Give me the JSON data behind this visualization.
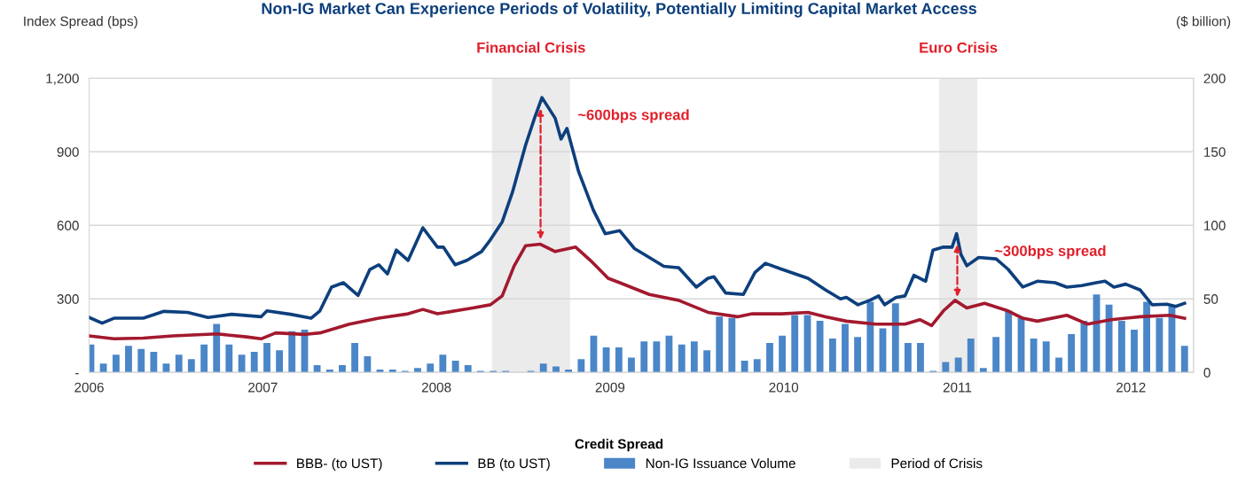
{
  "chart_data": {
    "type": "line",
    "title": "Non-IG Market Can Experience Periods of Volatility, Potentially Limiting Capital Market Access",
    "ylabel": "Index Spread (bps)",
    "y2label": "($ billion)",
    "legend_title": "Credit Spread",
    "xlim": [
      2006,
      2012.36
    ],
    "xticks": [
      2006,
      2007,
      2008,
      2009,
      2010,
      2011,
      2012
    ],
    "ylim": [
      0,
      1200
    ],
    "yticks": [
      {
        "value": 0,
        "label": "-"
      },
      300,
      600,
      900,
      {
        "value": 1200,
        "label": "1,200"
      }
    ],
    "y2lim": [
      0,
      200
    ],
    "y2ticks": [
      0,
      50,
      100,
      150,
      200
    ],
    "grid": "y",
    "legend": "bottom",
    "series": [
      {
        "name": "BBB- (to UST)",
        "color": "#a3192e",
        "x": [
          2006.0,
          2006.143,
          2006.312,
          2006.482,
          2006.736,
          2006.906,
          2006.99,
          2007.075,
          2007.245,
          2007.329,
          2007.499,
          2007.668,
          2007.837,
          2007.922,
          2008.006,
          2008.209,
          2008.311,
          2008.379,
          2008.447,
          2008.514,
          2008.599,
          2008.684,
          2008.802,
          2008.887,
          2008.989,
          2009.056,
          2009.226,
          2009.395,
          2009.564,
          2009.734,
          2009.819,
          2009.988,
          2010.14,
          2010.242,
          2010.361,
          2010.53,
          2010.699,
          2010.784,
          2010.852,
          2010.92,
          2010.987,
          2011.055,
          2011.157,
          2011.292,
          2011.377,
          2011.461,
          2011.631,
          2011.749,
          2011.885,
          2012.054,
          2012.224,
          2012.309
        ],
        "values": [
          149,
          137,
          140,
          149,
          157,
          145,
          137,
          161,
          155,
          161,
          197,
          221,
          239,
          257,
          239,
          263,
          276,
          312,
          433,
          517,
          523,
          493,
          511,
          457,
          384,
          366,
          318,
          294,
          245,
          227,
          239,
          239,
          245,
          227,
          209,
          197,
          197,
          215,
          191,
          251,
          294,
          263,
          282,
          251,
          221,
          209,
          233,
          197,
          215,
          227,
          233,
          221
        ]
      },
      {
        "name": "BB (to UST)",
        "color": "#0d3f7d",
        "x": [
          2006.0,
          2006.075,
          2006.143,
          2006.312,
          2006.431,
          2006.567,
          2006.685,
          2006.821,
          2006.99,
          2007.024,
          2007.16,
          2007.278,
          2007.329,
          2007.396,
          2007.464,
          2007.549,
          2007.617,
          2007.668,
          2007.718,
          2007.769,
          2007.837,
          2007.922,
          2008.006,
          2008.04,
          2008.108,
          2008.176,
          2008.26,
          2008.311,
          2008.379,
          2008.438,
          2008.514,
          2008.565,
          2008.608,
          2008.684,
          2008.718,
          2008.752,
          2008.819,
          2008.904,
          2008.972,
          2009.056,
          2009.141,
          2009.226,
          2009.31,
          2009.395,
          2009.497,
          2009.564,
          2009.599,
          2009.666,
          2009.768,
          2009.835,
          2009.895,
          2009.988,
          2010.14,
          2010.242,
          2010.327,
          2010.361,
          2010.428,
          2010.496,
          2010.547,
          2010.581,
          2010.648,
          2010.699,
          2010.75,
          2010.818,
          2010.86,
          2010.92,
          2010.97,
          2010.996,
          2011.021,
          2011.055,
          2011.123,
          2011.224,
          2011.292,
          2011.377,
          2011.461,
          2011.563,
          2011.631,
          2011.716,
          2011.8,
          2011.851,
          2011.902,
          2011.97,
          2012.054,
          2012.122,
          2012.207,
          2012.258,
          2012.309
        ],
        "values": [
          224,
          201,
          221,
          221,
          249,
          245,
          224,
          237,
          227,
          251,
          237,
          221,
          251,
          348,
          366,
          314,
          420,
          439,
          402,
          499,
          457,
          590,
          511,
          511,
          439,
          457,
          493,
          541,
          614,
          735,
          928,
          1037,
          1121,
          1037,
          952,
          995,
          819,
          662,
          566,
          578,
          505,
          469,
          433,
          427,
          348,
          384,
          390,
          324,
          318,
          408,
          445,
          421,
          384,
          336,
          300,
          306,
          276,
          294,
          312,
          276,
          306,
          312,
          396,
          372,
          499,
          511,
          511,
          566,
          481,
          435,
          469,
          463,
          421,
          348,
          372,
          366,
          348,
          354,
          366,
          372,
          348,
          360,
          336,
          276,
          278,
          269,
          282
        ]
      },
      {
        "name": "Non-IG Issuance Volume",
        "type": "bar",
        "axis": "y2",
        "color": "#4a86c8",
        "x": [
          2006.01,
          2006.082,
          2006.155,
          2006.227,
          2006.3,
          2006.372,
          2006.444,
          2006.517,
          2006.589,
          2006.662,
          2006.734,
          2006.806,
          2006.879,
          2006.951,
          2007.024,
          2007.096,
          2007.168,
          2007.241,
          2007.313,
          2007.386,
          2007.458,
          2007.53,
          2007.603,
          2007.675,
          2007.748,
          2007.82,
          2007.892,
          2007.965,
          2008.037,
          2008.11,
          2008.182,
          2008.254,
          2008.327,
          2008.399,
          2008.472,
          2008.544,
          2008.616,
          2008.689,
          2008.761,
          2008.834,
          2008.906,
          2008.978,
          2009.051,
          2009.123,
          2009.196,
          2009.268,
          2009.34,
          2009.413,
          2009.485,
          2009.558,
          2009.63,
          2009.702,
          2009.775,
          2009.847,
          2009.92,
          2009.992,
          2010.064,
          2010.137,
          2010.209,
          2010.282,
          2010.354,
          2010.426,
          2010.499,
          2010.571,
          2010.644,
          2010.716,
          2010.788,
          2010.861,
          2010.933,
          2011.006,
          2011.078,
          2011.15,
          2011.223,
          2011.295,
          2011.368,
          2011.44,
          2011.512,
          2011.585,
          2011.657,
          2011.73,
          2011.802,
          2011.874,
          2011.947,
          2012.019,
          2012.091,
          2012.164,
          2012.236,
          2012.309
        ],
        "values": [
          19,
          6,
          12,
          18,
          16,
          14,
          6,
          12,
          9,
          19,
          33,
          19,
          12,
          14,
          20,
          15,
          28,
          29,
          5,
          2,
          5,
          20,
          11,
          2,
          2,
          1,
          3,
          6,
          12,
          8,
          5,
          1,
          1,
          1,
          0,
          1,
          6,
          4,
          2,
          9,
          25,
          17,
          17,
          10,
          21,
          21,
          25,
          19,
          21,
          15,
          38,
          37,
          8,
          9,
          20,
          25,
          39,
          39,
          35,
          23,
          33,
          24,
          48,
          30,
          47,
          20,
          20,
          1,
          7,
          10,
          23,
          3,
          24,
          42,
          37,
          23,
          21,
          10,
          26,
          35,
          53,
          46,
          35,
          29,
          48,
          37,
          45,
          18
        ]
      }
    ],
    "bands": [
      {
        "axis": "x",
        "from": 2008.32,
        "to": 2008.77,
        "label": "Period of Crisis",
        "color": "#ebebeb"
      },
      {
        "axis": "x",
        "from": 2010.896,
        "to": 2011.115,
        "color": "#ebebeb"
      }
    ],
    "annotations": [
      "Financial Crisis",
      "Euro Crisis",
      {
        "text": "~600bps spread",
        "x": 2008.6,
        "y": 1121
      },
      {
        "text": "~300bps spread",
        "x": 2011.0,
        "y": 566
      }
    ]
  }
}
